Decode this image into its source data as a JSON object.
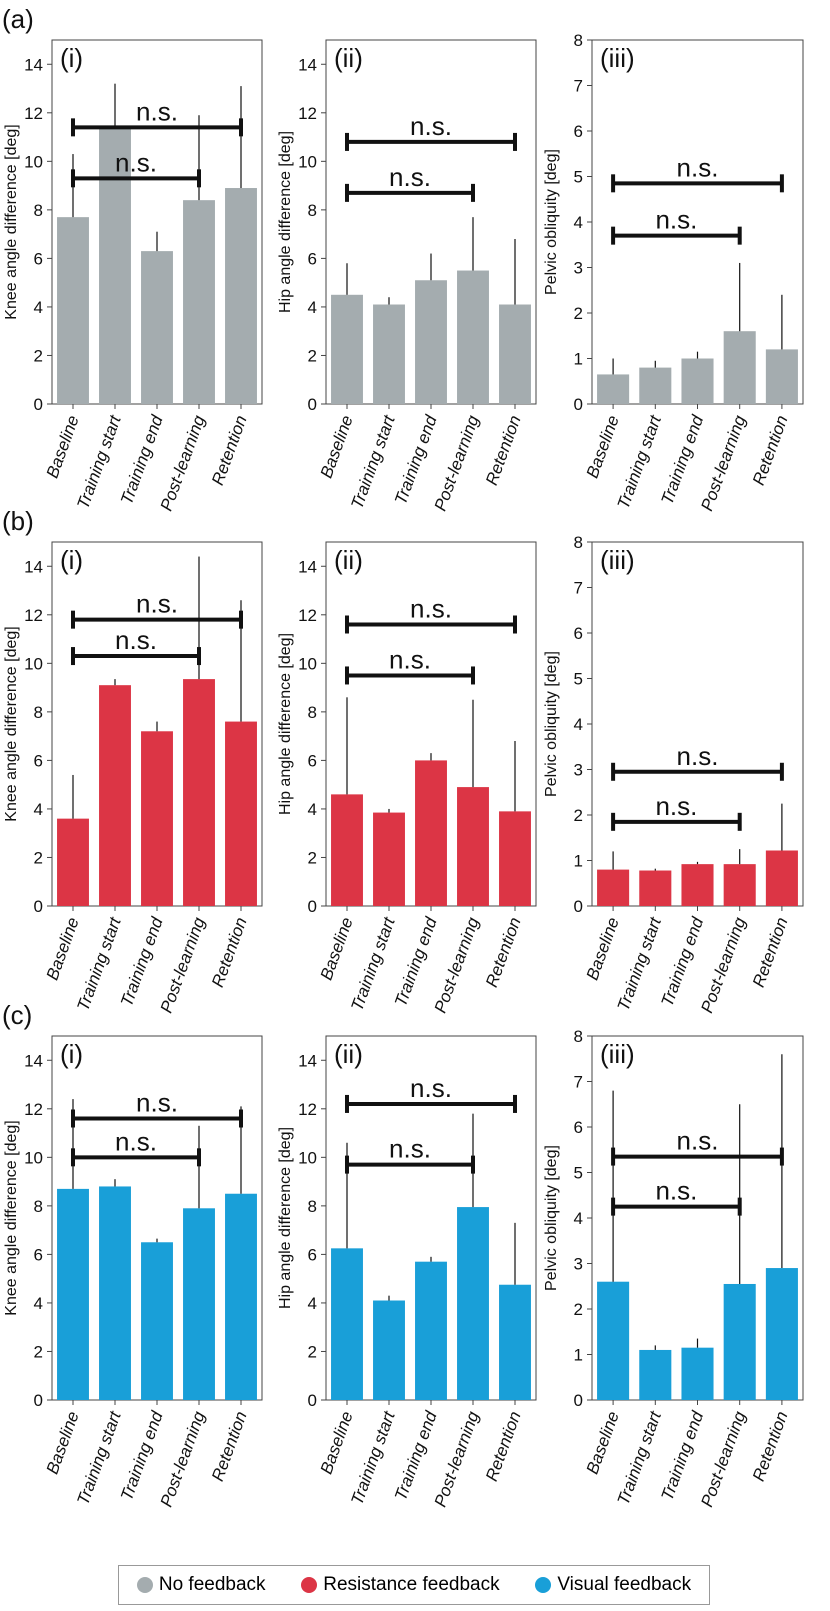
{
  "panel_labels": [
    "(a)",
    "(b)",
    "(c)"
  ],
  "subplot_labels": [
    "(i)",
    "(ii)",
    "(iii)"
  ],
  "sig_label": "n.s.",
  "categories": [
    "Baseline",
    "Training start",
    "Training end",
    "Post-learning",
    "Retention"
  ],
  "ylabels": [
    "Knee angle difference [deg]",
    "Hip angle difference [deg]",
    "Pelvic obliquity [deg]"
  ],
  "colors": {
    "No feedback": "#a4acaf",
    "Resistance feedback": "#dc3545",
    "Visual feedback": "#199fd8"
  },
  "legend": [
    {
      "label": "No feedback",
      "color": "#a4acaf"
    },
    {
      "label": "Resistance feedback",
      "color": "#dc3545"
    },
    {
      "label": "Visual feedback",
      "color": "#199fd8"
    }
  ],
  "chart_data": [
    {
      "type": "bar",
      "panel": "(a)",
      "subplot": "(i)",
      "ylabel": "Knee angle difference [deg]",
      "ylim": [
        0,
        15
      ],
      "yticks": [
        0,
        2,
        4,
        6,
        8,
        10,
        12,
        14
      ],
      "values": [
        7.7,
        11.4,
        6.3,
        8.4,
        8.9
      ],
      "error_top": [
        10.3,
        13.2,
        7.1,
        11.9,
        13.1
      ],
      "sig": [
        {
          "from": 0,
          "to": 4,
          "y": 11.4,
          "label": "n.s."
        },
        {
          "from": 0,
          "to": 3,
          "y": 9.3,
          "label": "n.s."
        }
      ]
    },
    {
      "type": "bar",
      "panel": "(a)",
      "subplot": "(ii)",
      "ylabel": "Hip angle difference [deg]",
      "ylim": [
        0,
        15
      ],
      "yticks": [
        0,
        2,
        4,
        6,
        8,
        10,
        12,
        14
      ],
      "values": [
        4.5,
        4.1,
        5.1,
        5.5,
        4.1
      ],
      "error_top": [
        5.8,
        4.4,
        6.2,
        7.7,
        6.8
      ],
      "sig": [
        {
          "from": 0,
          "to": 4,
          "y": 10.8,
          "label": "n.s."
        },
        {
          "from": 0,
          "to": 3,
          "y": 8.7,
          "label": "n.s."
        }
      ]
    },
    {
      "type": "bar",
      "panel": "(a)",
      "subplot": "(iii)",
      "ylabel": "Pelvic obliquity [deg]",
      "ylim": [
        0,
        8
      ],
      "yticks": [
        0,
        1,
        2,
        3,
        4,
        5,
        6,
        7,
        8
      ],
      "values": [
        0.65,
        0.8,
        1.0,
        1.6,
        1.2
      ],
      "error_top": [
        1.0,
        0.95,
        1.15,
        3.1,
        2.4
      ],
      "sig": [
        {
          "from": 0,
          "to": 4,
          "y": 4.85,
          "label": "n.s."
        },
        {
          "from": 0,
          "to": 3,
          "y": 3.7,
          "label": "n.s."
        }
      ]
    },
    {
      "type": "bar",
      "panel": "(b)",
      "subplot": "(i)",
      "ylabel": "Knee angle difference [deg]",
      "ylim": [
        0,
        15
      ],
      "yticks": [
        0,
        2,
        4,
        6,
        8,
        10,
        12,
        14
      ],
      "values": [
        3.6,
        9.1,
        7.2,
        9.35,
        7.6
      ],
      "error_top": [
        5.4,
        9.35,
        7.6,
        14.4,
        12.6
      ],
      "sig": [
        {
          "from": 0,
          "to": 4,
          "y": 11.8,
          "label": "n.s."
        },
        {
          "from": 0,
          "to": 3,
          "y": 10.3,
          "label": "n.s."
        }
      ]
    },
    {
      "type": "bar",
      "panel": "(b)",
      "subplot": "(ii)",
      "ylabel": "Hip angle difference [deg]",
      "ylim": [
        0,
        15
      ],
      "yticks": [
        0,
        2,
        4,
        6,
        8,
        10,
        12,
        14
      ],
      "values": [
        4.6,
        3.85,
        6.0,
        4.9,
        3.9
      ],
      "error_top": [
        8.6,
        4.0,
        6.3,
        8.5,
        6.8
      ],
      "sig": [
        {
          "from": 0,
          "to": 4,
          "y": 11.6,
          "label": "n.s."
        },
        {
          "from": 0,
          "to": 3,
          "y": 9.5,
          "label": "n.s."
        }
      ]
    },
    {
      "type": "bar",
      "panel": "(b)",
      "subplot": "(iii)",
      "ylabel": "Pelvic obliquity [deg]",
      "ylim": [
        0,
        8
      ],
      "yticks": [
        0,
        1,
        2,
        3,
        4,
        5,
        6,
        7,
        8
      ],
      "values": [
        0.8,
        0.78,
        0.92,
        0.92,
        1.22
      ],
      "error_top": [
        1.2,
        0.82,
        0.97,
        1.25,
        2.25
      ],
      "sig": [
        {
          "from": 0,
          "to": 4,
          "y": 2.95,
          "label": "n.s."
        },
        {
          "from": 0,
          "to": 3,
          "y": 1.85,
          "label": "n.s."
        }
      ]
    },
    {
      "type": "bar",
      "panel": "(c)",
      "subplot": "(i)",
      "ylabel": "Knee angle difference [deg]",
      "ylim": [
        0,
        15
      ],
      "yticks": [
        0,
        2,
        4,
        6,
        8,
        10,
        12,
        14
      ],
      "values": [
        8.7,
        8.8,
        6.5,
        7.9,
        8.5
      ],
      "error_top": [
        12.4,
        9.1,
        6.65,
        11.3,
        12.1
      ],
      "sig": [
        {
          "from": 0,
          "to": 4,
          "y": 11.6,
          "label": "n.s."
        },
        {
          "from": 0,
          "to": 3,
          "y": 10.0,
          "label": "n.s."
        }
      ]
    },
    {
      "type": "bar",
      "panel": "(c)",
      "subplot": "(ii)",
      "ylabel": "Hip angle difference [deg]",
      "ylim": [
        0,
        15
      ],
      "yticks": [
        0,
        2,
        4,
        6,
        8,
        10,
        12,
        14
      ],
      "values": [
        6.25,
        4.1,
        5.7,
        7.95,
        4.75
      ],
      "error_top": [
        10.6,
        4.3,
        5.9,
        11.8,
        7.3
      ],
      "sig": [
        {
          "from": 0,
          "to": 4,
          "y": 12.2,
          "label": "n.s."
        },
        {
          "from": 0,
          "to": 3,
          "y": 9.7,
          "label": "n.s."
        }
      ]
    },
    {
      "type": "bar",
      "panel": "(c)",
      "subplot": "(iii)",
      "ylabel": "Pelvic obliquity [deg]",
      "ylim": [
        0,
        8
      ],
      "yticks": [
        0,
        1,
        2,
        3,
        4,
        5,
        6,
        7,
        8
      ],
      "values": [
        2.6,
        1.1,
        1.15,
        2.55,
        2.9
      ],
      "error_top": [
        6.8,
        1.2,
        1.35,
        6.5,
        7.6
      ],
      "sig": [
        {
          "from": 0,
          "to": 4,
          "y": 5.35,
          "label": "n.s."
        },
        {
          "from": 0,
          "to": 3,
          "y": 4.25,
          "label": "n.s."
        }
      ]
    }
  ]
}
